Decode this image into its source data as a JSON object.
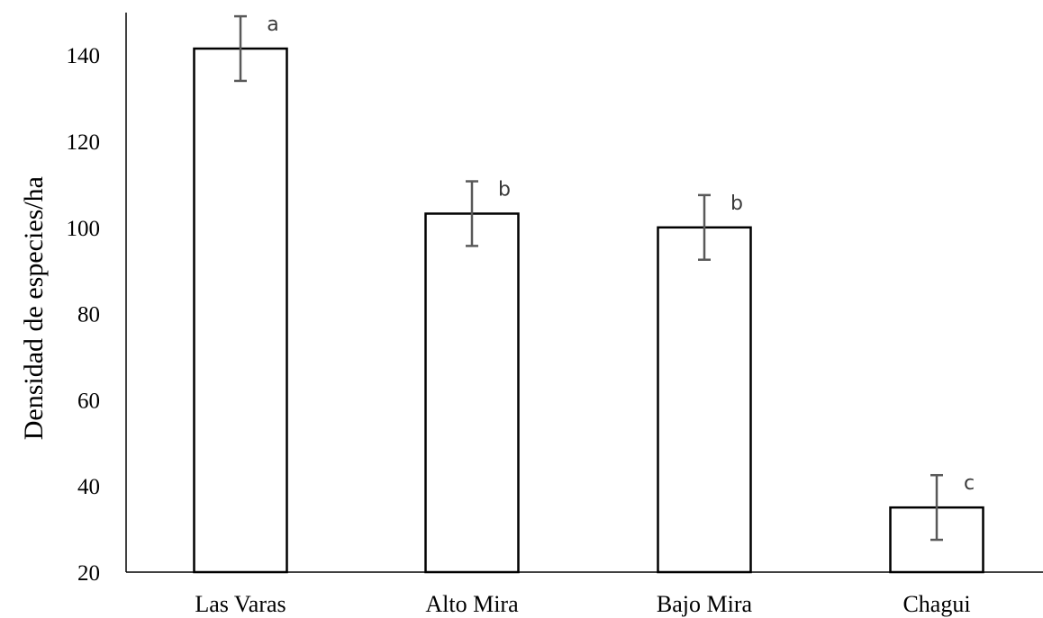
{
  "chart_data": {
    "type": "bar",
    "title": "",
    "xlabel": "",
    "ylabel": "Densidad de especies/ha",
    "categories": [
      "Las Varas",
      "Alto Mira",
      "Bajo Mira",
      "Chagui"
    ],
    "values": [
      141.5,
      103.2,
      100.0,
      35.0
    ],
    "error": [
      7.5,
      7.5,
      7.5,
      7.5
    ],
    "significance": [
      "a",
      "b",
      "b",
      "c"
    ],
    "ylim": [
      20,
      150
    ],
    "yticks": [
      20,
      40,
      60,
      80,
      100,
      120,
      140
    ],
    "grid": false,
    "legend": "none",
    "colors": {
      "bar_fill": "#ffffff",
      "bar_stroke": "#000000",
      "error_bar": "#595959",
      "axis": "#000000",
      "sig_text": "#3a3a3a"
    }
  }
}
